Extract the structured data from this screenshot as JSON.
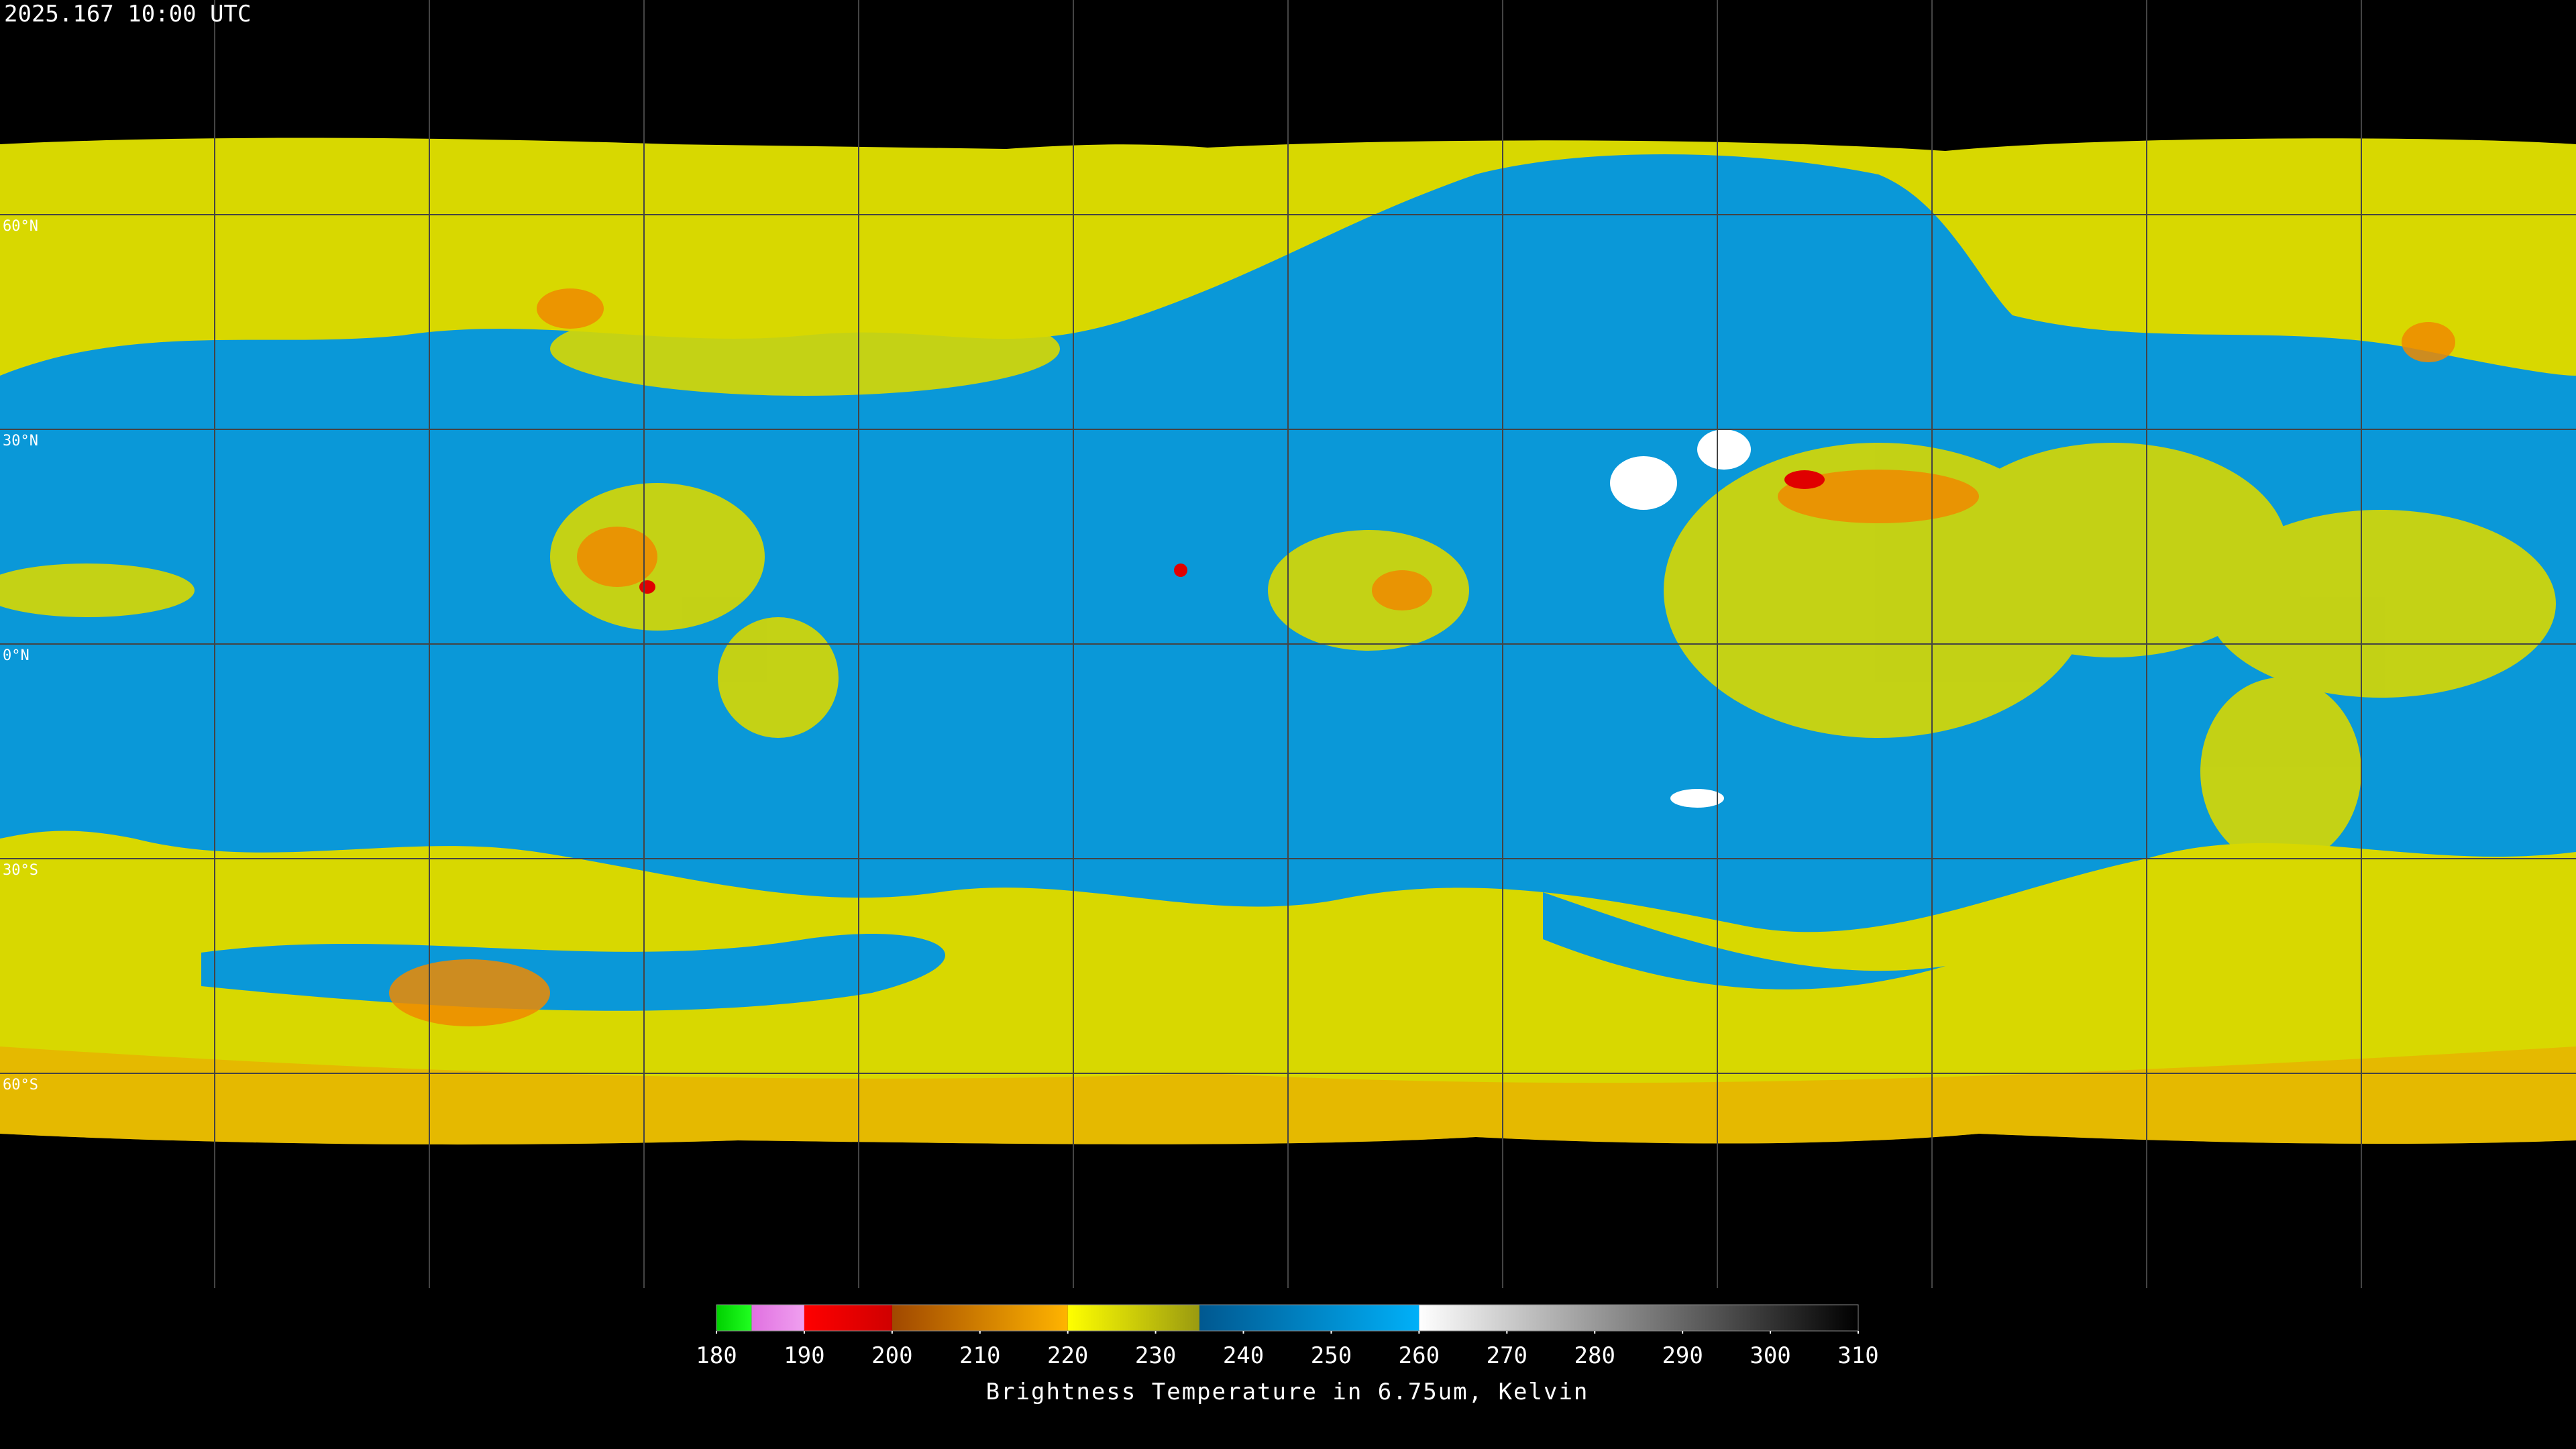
{
  "header": {
    "timestamp": "2025.167 10:00 UTC"
  },
  "map": {
    "latitude_labels": [
      "60°N",
      "30°N",
      "0°N",
      "30°S",
      "60°S"
    ]
  },
  "colorbar": {
    "title": "Brightness Temperature in 6.75um, Kelvin",
    "lim": [
      180,
      310
    ],
    "ticks": [
      180,
      190,
      200,
      210,
      220,
      230,
      240,
      250,
      260,
      270,
      280,
      290,
      300,
      310
    ],
    "segments": [
      {
        "from": 180,
        "to": 184,
        "colors": [
          "#00d000",
          "#20ff20"
        ]
      },
      {
        "from": 184,
        "to": 190,
        "colors": [
          "#e070e0",
          "#f0a0f0"
        ]
      },
      {
        "from": 190,
        "to": 200,
        "colors": [
          "#ff0000",
          "#d00000"
        ]
      },
      {
        "from": 200,
        "to": 220,
        "colors": [
          "#a04800",
          "#ffb400"
        ]
      },
      {
        "from": 220,
        "to": 235,
        "colors": [
          "#ffff00",
          "#9a9a10"
        ]
      },
      {
        "from": 235,
        "to": 260,
        "colors": [
          "#005890",
          "#00b0f8"
        ]
      },
      {
        "from": 260,
        "to": 310,
        "colors": [
          "#ffffff",
          "#000000"
        ]
      }
    ]
  }
}
